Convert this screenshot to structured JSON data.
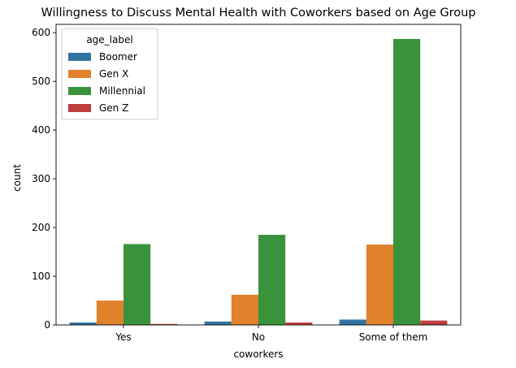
{
  "chart_data": {
    "type": "bar",
    "title": "Willingness to Discuss Mental Health with Coworkers based on Age Group",
    "xlabel": "coworkers",
    "ylabel": "count",
    "categories": [
      "Yes",
      "No",
      "Some of them"
    ],
    "ylim": [
      0,
      600
    ],
    "yticks": [
      0,
      100,
      200,
      300,
      400,
      500,
      600
    ],
    "legend": {
      "title": "age_label",
      "placement": "top-left"
    },
    "series": [
      {
        "name": "Boomer",
        "color": "#3274a1",
        "values": [
          5,
          7,
          11
        ]
      },
      {
        "name": "Gen X",
        "color": "#e1812c",
        "values": [
          50,
          62,
          165
        ]
      },
      {
        "name": "Millennial",
        "color": "#3a923a",
        "values": [
          166,
          185,
          587
        ]
      },
      {
        "name": "Gen Z",
        "color": "#c03d3e",
        "values": [
          2,
          5,
          9
        ]
      }
    ],
    "grid": false
  }
}
